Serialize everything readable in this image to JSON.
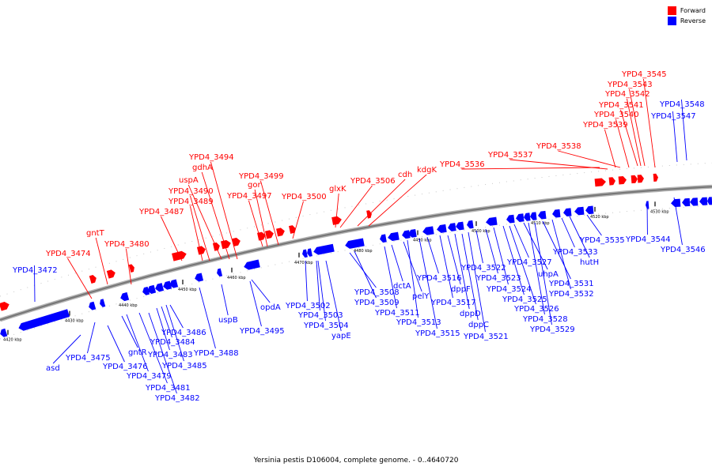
{
  "colors": {
    "forward": "#ff0000",
    "reverse": "#0000ff",
    "backbone": "#777777"
  },
  "legend": [
    {
      "label": "Forward",
      "color": "#ff0000"
    },
    {
      "label": "Reverse",
      "color": "#0000ff"
    }
  ],
  "caption": "Yersinia pestis D106004, complete genome. - 0..4640720",
  "ticks": [
    "4420 kbp",
    "4430 kbp",
    "4440 kbp",
    "4450 kbp",
    "4460 kbp",
    "4470 kbp",
    "4480 kbp",
    "4490 kbp",
    "4500 kbp",
    "4510 kbp",
    "4520 kbp",
    "4530 kbp"
  ],
  "forward_labels": [
    "YPD4_3474",
    "gntT",
    "YPD4_3480",
    "YPD4_3487",
    "YPD4_3489",
    "YPD4_3490",
    "uspA",
    "gdhA",
    "YPD4_3494",
    "YPD4_3497",
    "gor",
    "YPD4_3499",
    "YPD4_3500",
    "glxK",
    "YPD4_3506",
    "cdh",
    "kdgK",
    "YPD4_3536",
    "YPD4_3537",
    "YPD4_3538",
    "YPD4_3539",
    "YPD4_3540",
    "YPD4_3541",
    "YPD4_3542",
    "YPD4_3543",
    "YPD4_3545"
  ],
  "reverse_labels": [
    "YPD4_3472",
    "asd",
    "YPD4_3475",
    "YPD4_3476",
    "gntR",
    "YPD4_3479",
    "YPD4_3481",
    "YPD4_3482",
    "YPD4_3483",
    "YPD4_3484",
    "YPD4_3485",
    "YPD4_3486",
    "YPD4_3488",
    "uspB",
    "YPD4_3495",
    "opdA",
    "YPD4_3502",
    "YPD4_3503",
    "YPD4_3504",
    "yapE",
    "YPD4_3508",
    "YPD4_3509",
    "YPD4_3511",
    "dctA",
    "pelY",
    "YPD4_3513",
    "YPD4_3515",
    "YPD4_3516",
    "YPD4_3517",
    "dppF",
    "dppD",
    "dppC",
    "YPD4_3521",
    "YPD4_3522",
    "YPD4_3523",
    "YPD4_3524",
    "YPD4_3525",
    "YPD4_3526",
    "YPD4_3527",
    "uhpA",
    "YPD4_3528",
    "YPD4_3529",
    "YPD4_3531",
    "YPD4_3532",
    "YPD4_3533",
    "hutH",
    "YPD4_3535",
    "YPD4_3544",
    "YPD4_3546",
    "YPD4_3547",
    "YPD4_3548"
  ]
}
